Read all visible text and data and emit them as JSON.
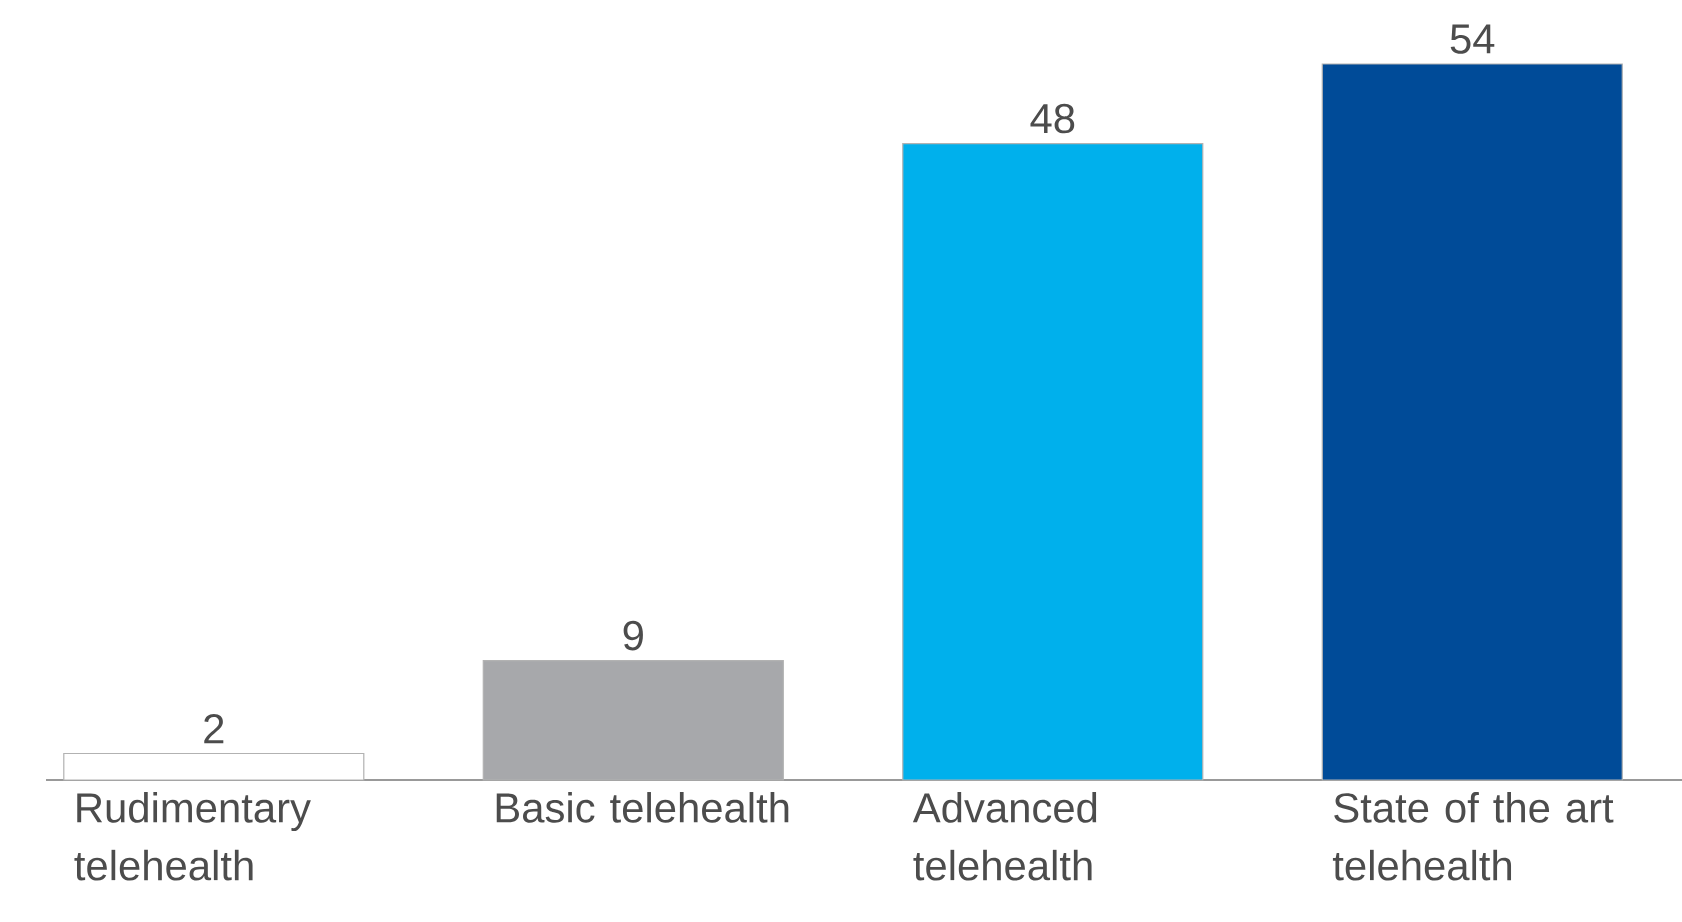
{
  "chart_data": {
    "type": "bar",
    "categories": [
      "Rudimentary telehealth",
      "Basic telehealth",
      "Advanced telehealth",
      "State of the art telehealth"
    ],
    "values": [
      2,
      9,
      48,
      54
    ],
    "colors": [
      "#ffffff",
      "#a7a8ab",
      "#00b0ec",
      "#004b98"
    ],
    "data_labels": true
  }
}
